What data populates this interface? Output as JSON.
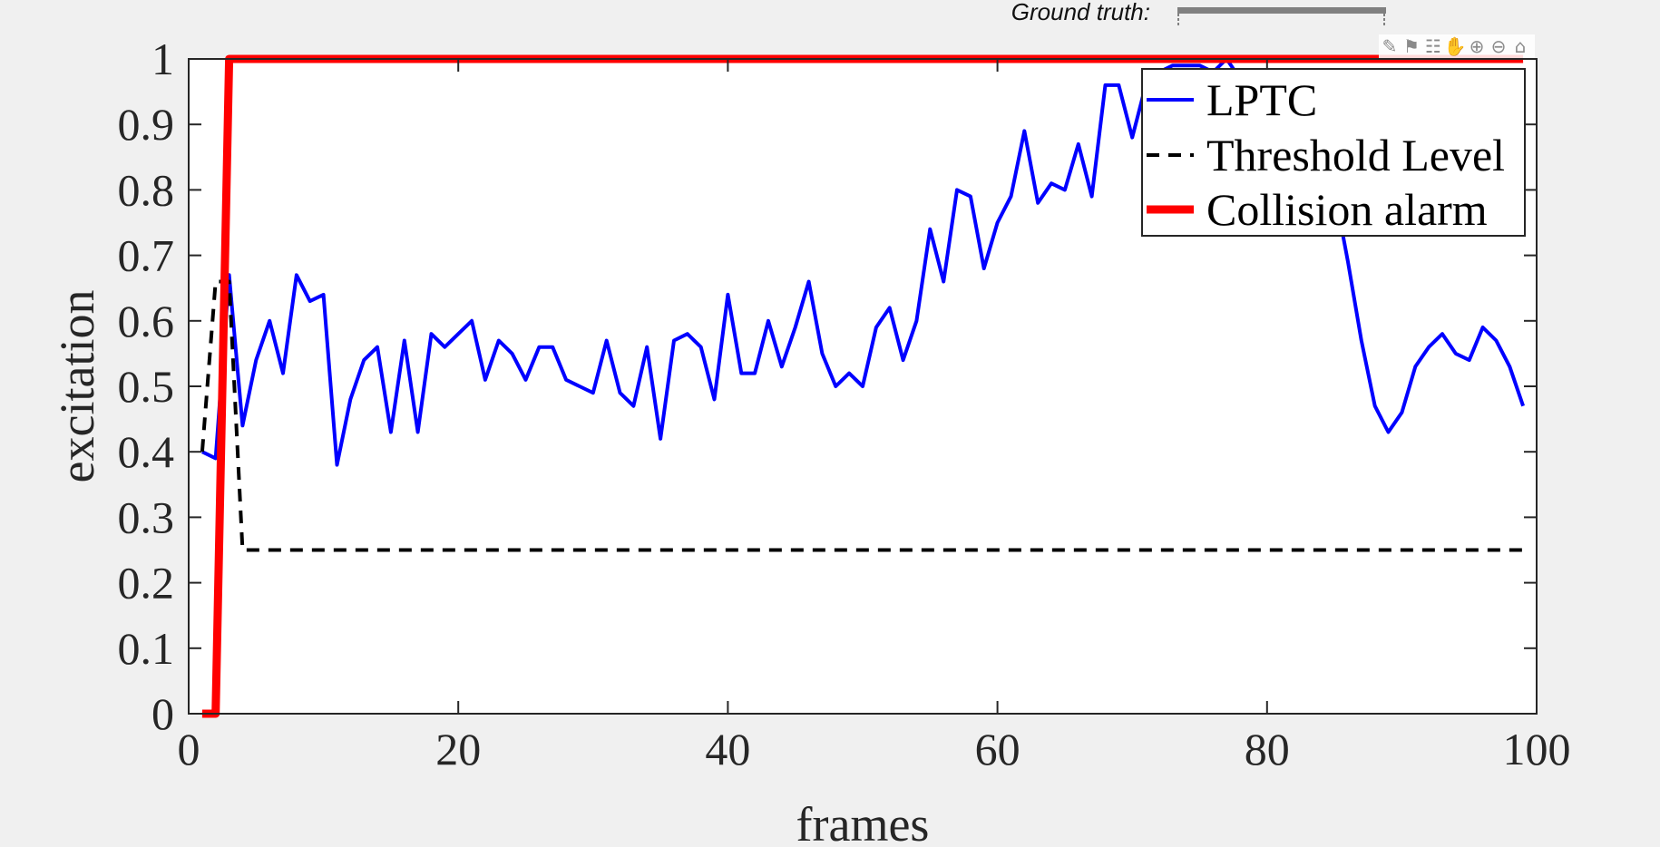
{
  "ground_truth": {
    "label": "Ground truth:"
  },
  "toolbar": {
    "icons": [
      "brush-icon",
      "pin-icon",
      "datatip-icon",
      "pan-hand-icon",
      "zoom-in-icon",
      "zoom-out-icon",
      "home-icon"
    ]
  },
  "colors": {
    "lptc": "#0000ff",
    "threshold": "#000000",
    "alarm": "#ff0000",
    "background": "#f0f0f0",
    "axes": "#ffffff",
    "ground_truth_bar": "#808080"
  },
  "chart_data": {
    "type": "line",
    "title": "",
    "xlabel": "frames",
    "ylabel": "excitation",
    "xlim": [
      0,
      100
    ],
    "ylim": [
      0,
      1
    ],
    "xticks": [
      0,
      20,
      40,
      60,
      80,
      100
    ],
    "xtick_labels": [
      "0",
      "20",
      "40",
      "60",
      "80",
      "100"
    ],
    "yticks": [
      0,
      0.1,
      0.2,
      0.3,
      0.4,
      0.5,
      0.6,
      0.7,
      0.8,
      0.9,
      1
    ],
    "ytick_labels": [
      "0",
      "0.1",
      "0.2",
      "0.3",
      "0.4",
      "0.5",
      "0.6",
      "0.7",
      "0.8",
      "0.9",
      "1"
    ],
    "grid": false,
    "legend_position": "top-right",
    "series": [
      {
        "name": "LPTC",
        "style": "solid",
        "x": [
          1,
          2,
          3,
          4,
          5,
          6,
          7,
          8,
          9,
          10,
          11,
          12,
          13,
          14,
          15,
          16,
          17,
          18,
          19,
          20,
          21,
          22,
          23,
          24,
          25,
          26,
          27,
          28,
          29,
          30,
          31,
          32,
          33,
          34,
          35,
          36,
          37,
          38,
          39,
          40,
          41,
          42,
          43,
          44,
          45,
          46,
          47,
          48,
          49,
          50,
          51,
          52,
          53,
          54,
          55,
          56,
          57,
          58,
          59,
          60,
          61,
          62,
          63,
          64,
          65,
          66,
          67,
          68,
          69,
          70,
          71,
          72,
          73,
          74,
          75,
          76,
          77,
          78,
          79,
          80,
          81,
          82,
          83,
          84,
          85,
          86,
          87,
          88,
          89,
          90,
          91,
          92,
          93,
          94,
          95,
          96,
          97,
          98,
          99
        ],
        "y": [
          0.4,
          0.39,
          0.67,
          0.44,
          0.54,
          0.6,
          0.52,
          0.67,
          0.63,
          0.64,
          0.38,
          0.48,
          0.54,
          0.56,
          0.43,
          0.57,
          0.43,
          0.58,
          0.56,
          0.58,
          0.6,
          0.51,
          0.57,
          0.55,
          0.51,
          0.56,
          0.56,
          0.51,
          0.5,
          0.49,
          0.57,
          0.49,
          0.47,
          0.56,
          0.42,
          0.57,
          0.58,
          0.56,
          0.48,
          0.64,
          0.52,
          0.52,
          0.6,
          0.53,
          0.59,
          0.66,
          0.55,
          0.5,
          0.52,
          0.5,
          0.59,
          0.62,
          0.54,
          0.6,
          0.74,
          0.66,
          0.8,
          0.79,
          0.68,
          0.75,
          0.79,
          0.89,
          0.78,
          0.81,
          0.8,
          0.87,
          0.79,
          0.96,
          0.96,
          0.88,
          0.96,
          0.98,
          0.99,
          0.99,
          0.99,
          0.98,
          1.0,
          0.97,
          0.94,
          0.93,
          0.92,
          0.9,
          0.88,
          0.85,
          0.8,
          0.69,
          0.57,
          0.47,
          0.43,
          0.46,
          0.53,
          0.56,
          0.58,
          0.55,
          0.54,
          0.59,
          0.57,
          0.53,
          0.47
        ]
      },
      {
        "name": "Threshold Level",
        "style": "dashed",
        "x": [
          1,
          2,
          3,
          4,
          99
        ],
        "y": [
          0.4,
          0.66,
          0.66,
          0.25,
          0.25
        ]
      },
      {
        "name": "Collision alarm",
        "style": "solid-thick",
        "x": [
          1,
          2,
          3,
          99
        ],
        "y": [
          0,
          0,
          1,
          1
        ]
      }
    ]
  }
}
